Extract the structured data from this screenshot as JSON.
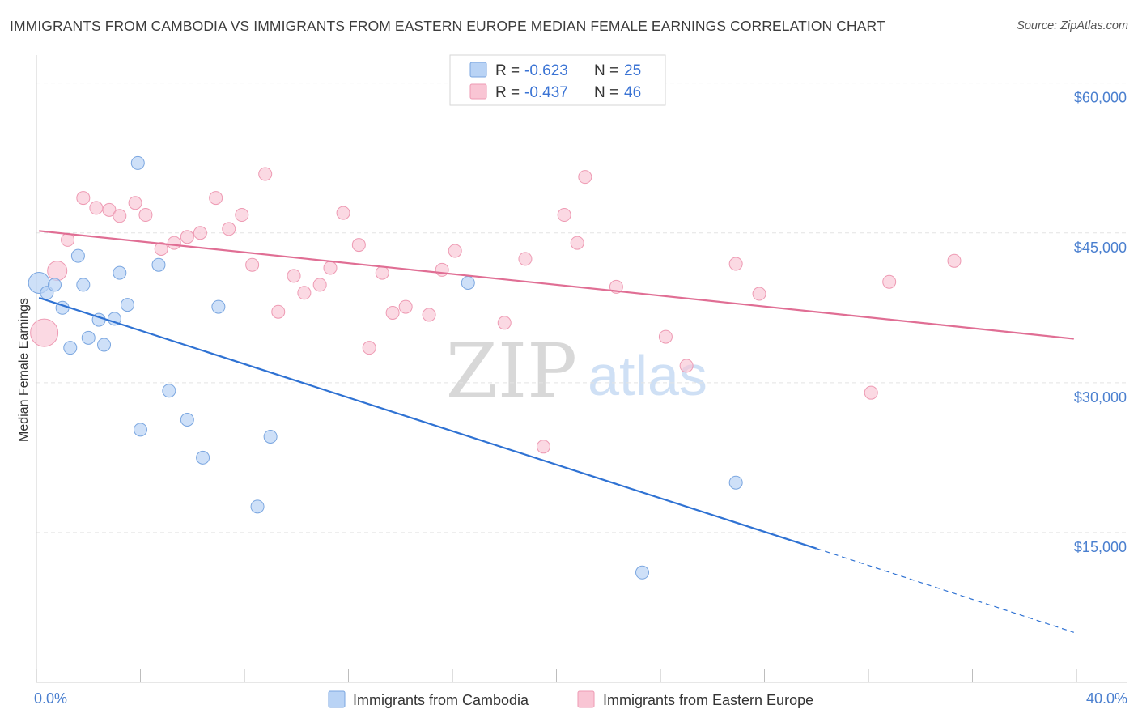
{
  "header": {
    "title": "IMMIGRANTS FROM CAMBODIA VS IMMIGRANTS FROM EASTERN EUROPE MEDIAN FEMALE EARNINGS CORRELATION CHART",
    "source": "Source: ZipAtlas.com"
  },
  "watermark": {
    "zip": "ZIP",
    "atlas": "atlas"
  },
  "colors": {
    "cambodia_fill": "#b9d3f5",
    "cambodia_stroke": "#7aa6e0",
    "cambodia_line": "#2f72d3",
    "europe_fill": "#f9c5d4",
    "europe_stroke": "#ee9ab3",
    "europe_line": "#e06e94",
    "tick_text": "#4a7fcf",
    "grid": "#e3e3e3"
  },
  "stats_box": {
    "rows": [
      {
        "r_label": "R =",
        "r_value": "-0.623",
        "n_label": "N =",
        "n_value": "25"
      },
      {
        "r_label": "R =",
        "r_value": "-0.437",
        "n_label": "N =",
        "n_value": "46"
      }
    ]
  },
  "legend": {
    "items": [
      {
        "label": "Immigrants from Cambodia"
      },
      {
        "label": "Immigrants from Eastern Europe"
      }
    ]
  },
  "chart_data": {
    "type": "scatter",
    "title": "IMMIGRANTS FROM CAMBODIA VS IMMIGRANTS FROM EASTERN EUROPE MEDIAN FEMALE EARNINGS CORRELATION CHART",
    "xlabel": "",
    "ylabel": "Median Female Earnings",
    "xlim": [
      0,
      40
    ],
    "ylim": [
      0,
      62000
    ],
    "x_tick_labels": [
      {
        "value": 0,
        "label": "0.0%"
      },
      {
        "value": 40,
        "label": "40.0%"
      }
    ],
    "x_minor_ticks": [
      0,
      4,
      8,
      12,
      16,
      20,
      24,
      28,
      32,
      36,
      40
    ],
    "y_ticks": [
      {
        "value": 60000,
        "label": "$60,000"
      },
      {
        "value": 45000,
        "label": "$45,000"
      },
      {
        "value": 30000,
        "label": "$30,000"
      },
      {
        "value": 15000,
        "label": "$15,000"
      }
    ],
    "grid": true,
    "series": [
      {
        "name": "Immigrants from Cambodia",
        "r": -0.623,
        "n": 25,
        "points": [
          [
            0.1,
            40000
          ],
          [
            0.4,
            39000
          ],
          [
            0.7,
            39800
          ],
          [
            1.0,
            37500
          ],
          [
            1.3,
            33500
          ],
          [
            1.6,
            42700
          ],
          [
            1.8,
            39800
          ],
          [
            2.0,
            34500
          ],
          [
            2.4,
            36300
          ],
          [
            2.6,
            33800
          ],
          [
            3.0,
            36400
          ],
          [
            3.2,
            41000
          ],
          [
            3.5,
            37800
          ],
          [
            3.9,
            52000
          ],
          [
            4.0,
            25300
          ],
          [
            4.7,
            41800
          ],
          [
            5.1,
            29200
          ],
          [
            5.8,
            26300
          ],
          [
            6.4,
            22500
          ],
          [
            7.0,
            37600
          ],
          [
            8.5,
            17600
          ],
          [
            9.0,
            24600
          ],
          [
            16.6,
            40000
          ],
          [
            23.3,
            11000
          ],
          [
            26.9,
            20000
          ]
        ],
        "trend": {
          "x0": 0.1,
          "y0": 38500,
          "x1": 30.0,
          "y1": 13400,
          "dash_to_x": 39.9,
          "dash_to_y": 5000
        }
      },
      {
        "name": "Immigrants from Eastern Europe",
        "r": -0.437,
        "n": 46,
        "points": [
          [
            0.3,
            35000
          ],
          [
            0.8,
            41200
          ],
          [
            1.2,
            44300
          ],
          [
            1.8,
            48500
          ],
          [
            2.3,
            47500
          ],
          [
            2.8,
            47300
          ],
          [
            3.2,
            46700
          ],
          [
            3.8,
            48000
          ],
          [
            4.2,
            46800
          ],
          [
            4.8,
            43400
          ],
          [
            5.3,
            44000
          ],
          [
            5.8,
            44600
          ],
          [
            6.3,
            45000
          ],
          [
            6.9,
            48500
          ],
          [
            7.4,
            45400
          ],
          [
            7.9,
            46800
          ],
          [
            8.3,
            41800
          ],
          [
            8.8,
            50900
          ],
          [
            9.3,
            37100
          ],
          [
            9.9,
            40700
          ],
          [
            10.3,
            39000
          ],
          [
            10.9,
            39800
          ],
          [
            11.3,
            41500
          ],
          [
            11.8,
            47000
          ],
          [
            12.4,
            43800
          ],
          [
            12.8,
            33500
          ],
          [
            13.3,
            41000
          ],
          [
            13.7,
            37000
          ],
          [
            14.2,
            37600
          ],
          [
            15.1,
            36800
          ],
          [
            15.6,
            41300
          ],
          [
            16.1,
            43200
          ],
          [
            18.0,
            36000
          ],
          [
            18.8,
            42400
          ],
          [
            19.5,
            23600
          ],
          [
            20.3,
            46800
          ],
          [
            20.8,
            44000
          ],
          [
            21.1,
            50600
          ],
          [
            22.3,
            39600
          ],
          [
            24.2,
            34600
          ],
          [
            25.0,
            31700
          ],
          [
            26.9,
            41900
          ],
          [
            27.8,
            38900
          ],
          [
            32.1,
            29000
          ],
          [
            32.8,
            40100
          ],
          [
            35.3,
            42200
          ]
        ],
        "trend": {
          "x0": 0.1,
          "y0": 45200,
          "x1": 39.9,
          "y1": 34400
        }
      }
    ]
  }
}
